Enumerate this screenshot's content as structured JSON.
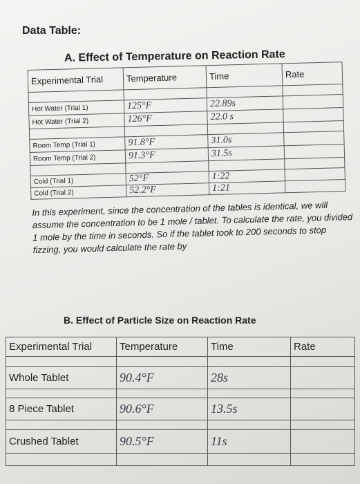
{
  "heading": "Data Table:",
  "section_a": {
    "title": "A. Effect of Temperature on Reaction Rate",
    "headers": [
      "Experimental Trial",
      "Temperature",
      "Time",
      "Rate"
    ],
    "rows": [
      [
        "Hot Water (Trial 1)",
        "125°F",
        "22.89s"
      ],
      [
        "Hot Water (Trial 2)",
        "126°F",
        "22.0 s"
      ],
      [
        "Room Temp (Trial 1)",
        "91.8°F",
        "31.0s"
      ],
      [
        "Room Temp (Trial 2)",
        "91.3°F",
        "31.5s"
      ],
      [
        "Cold (Trial 1)",
        "52°F",
        "1:22"
      ],
      [
        "Cold (Trial 2)",
        "52.2°F",
        "1:21"
      ]
    ]
  },
  "paragraph": "In this experiment, since the concentration of the tables is identical, we will assume the concentration to be 1 mole / tablet. To calculate the rate, you divided 1 mole by the time in seconds. So if the tablet took to 200 seconds to stop fizzing, you would calculate the rate by",
  "section_b": {
    "title": "B. Effect of Particle Size on Reaction Rate",
    "headers": [
      "Experimental Trial",
      "Temperature",
      "Time",
      "Rate"
    ],
    "rows": [
      [
        "Whole Tablet",
        "90.4°F",
        "28s"
      ],
      [
        "8 Piece Tablet",
        "90.6°F",
        "13.5s"
      ],
      [
        "Crushed Tablet",
        "90.5°F",
        "11s"
      ]
    ]
  }
}
